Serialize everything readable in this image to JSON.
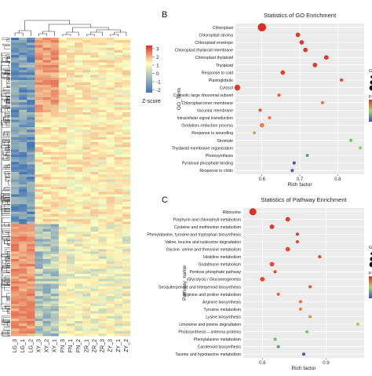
{
  "panels": {
    "b_label": "B",
    "c_label": "C"
  },
  "heatmap": {
    "columns": [
      "LG_3",
      "LG_1",
      "LG_2",
      "XY_3",
      "XY_2",
      "XY_1",
      "FN_3",
      "FN_1",
      "FN_2",
      "ZR_1",
      "ZR_2",
      "ZR_3",
      "ZY_3",
      "ZY_1",
      "ZY_2"
    ],
    "colorbar_ticks": [
      "3",
      "2",
      "1",
      "0",
      "-1",
      "-2"
    ],
    "colorbar_title": "Z-score",
    "colors": {
      "high": "#d73027",
      "mid": "#ffffbf",
      "low": "#4575b4"
    }
  },
  "chart_data": [
    {
      "type": "scatter",
      "title": "Statistics of GO Enrichment",
      "xlabel": "Rich factor",
      "ylabel": "GO_Term",
      "xlim": [
        0.53,
        0.87
      ],
      "x_ticks": [
        "0.6",
        "0.7",
        "0.8"
      ],
      "legend_titles": [
        "Gen",
        "p Va"
      ],
      "categories": [
        "Chloroplast",
        "Chloroplast stroma",
        "Chloroplast envelope",
        "Chloroplast thylakoid membrane",
        "Chloroplast thylakoid",
        "Thylakoid",
        "Response to cold",
        "Plastoglobule",
        "Cytosol",
        "Cytosolic large ribosomal subunit",
        "Chloroplast inner membrane",
        "Vacuolar membrane",
        "Intracellular signal transduction",
        "Oxidation–reduction process",
        "Response to wounding",
        "Stromule",
        "Thylakoid membrane organization",
        "Photosynthesis",
        "Pyridoxal phosphate binding",
        "Response to chitin"
      ],
      "x": [
        0.6,
        0.695,
        0.705,
        0.715,
        0.77,
        0.74,
        0.655,
        0.81,
        0.535,
        0.645,
        0.76,
        0.595,
        0.62,
        0.6,
        0.58,
        0.835,
        0.86,
        0.72,
        0.685,
        0.68
      ],
      "size": [
        5,
        2,
        2,
        2,
        2,
        2,
        2,
        1,
        3,
        1,
        1,
        1,
        1,
        2,
        1,
        1,
        1,
        1,
        1,
        1
      ],
      "p": [
        0.0,
        0.05,
        0.05,
        0.05,
        0.05,
        0.05,
        0.08,
        0.1,
        0.05,
        0.2,
        0.25,
        0.15,
        0.25,
        0.3,
        0.4,
        0.7,
        0.6,
        0.8,
        0.95,
        0.95
      ]
    },
    {
      "type": "scatter",
      "title": "Statistics of Pathway Enrichment",
      "xlabel": "Rich factor",
      "ylabel": "Pathway_name",
      "xlim": [
        0.77,
        0.96
      ],
      "x_ticks": [
        "0.8",
        "0.9"
      ],
      "legend_titles": [
        "Gen",
        "p"
      ],
      "categories": [
        "Ribosome",
        "Porphyrin and chlorophyll metabolism",
        "Cysteine and methionine metabolism",
        "Phenylalanine, tyrosine and tryptophan biosynthesis",
        "Valine, leucine and isoleucine degradation",
        "Glycine, serine and threonine metabolism",
        "Histidine metabolism",
        "Glutathione metabolism",
        "Pentose phosphate pathway",
        "Glycolysis / Gluconeogenesis",
        "Sesquiterpenoid and triterpenoid biosynthesis",
        "Arginine and proline metabolism",
        "Arginine biosynthesis",
        "Tyrosine metabolism",
        "Lysine biosynthesis",
        "Limonene and pinene degradation",
        "Photosynthesis – antenna proteins",
        "Phenylalanine metabolism",
        "Carotenoid biosynthesis",
        "Taurine and hypotaurine metabolism"
      ],
      "x": [
        0.785,
        0.84,
        0.815,
        0.855,
        0.855,
        0.84,
        0.89,
        0.815,
        0.82,
        0.8,
        0.875,
        0.825,
        0.86,
        0.86,
        0.875,
        0.95,
        0.87,
        0.82,
        0.825,
        0.865
      ],
      "size": [
        4,
        2,
        2,
        1,
        1,
        2,
        1,
        2,
        1,
        2,
        1,
        1,
        1,
        1,
        1,
        1,
        1,
        1,
        1,
        1
      ],
      "p": [
        0.0,
        0.05,
        0.05,
        0.05,
        0.1,
        0.1,
        0.1,
        0.1,
        0.1,
        0.1,
        0.15,
        0.2,
        0.25,
        0.3,
        0.35,
        0.55,
        0.65,
        0.7,
        0.8,
        0.95
      ]
    }
  ]
}
